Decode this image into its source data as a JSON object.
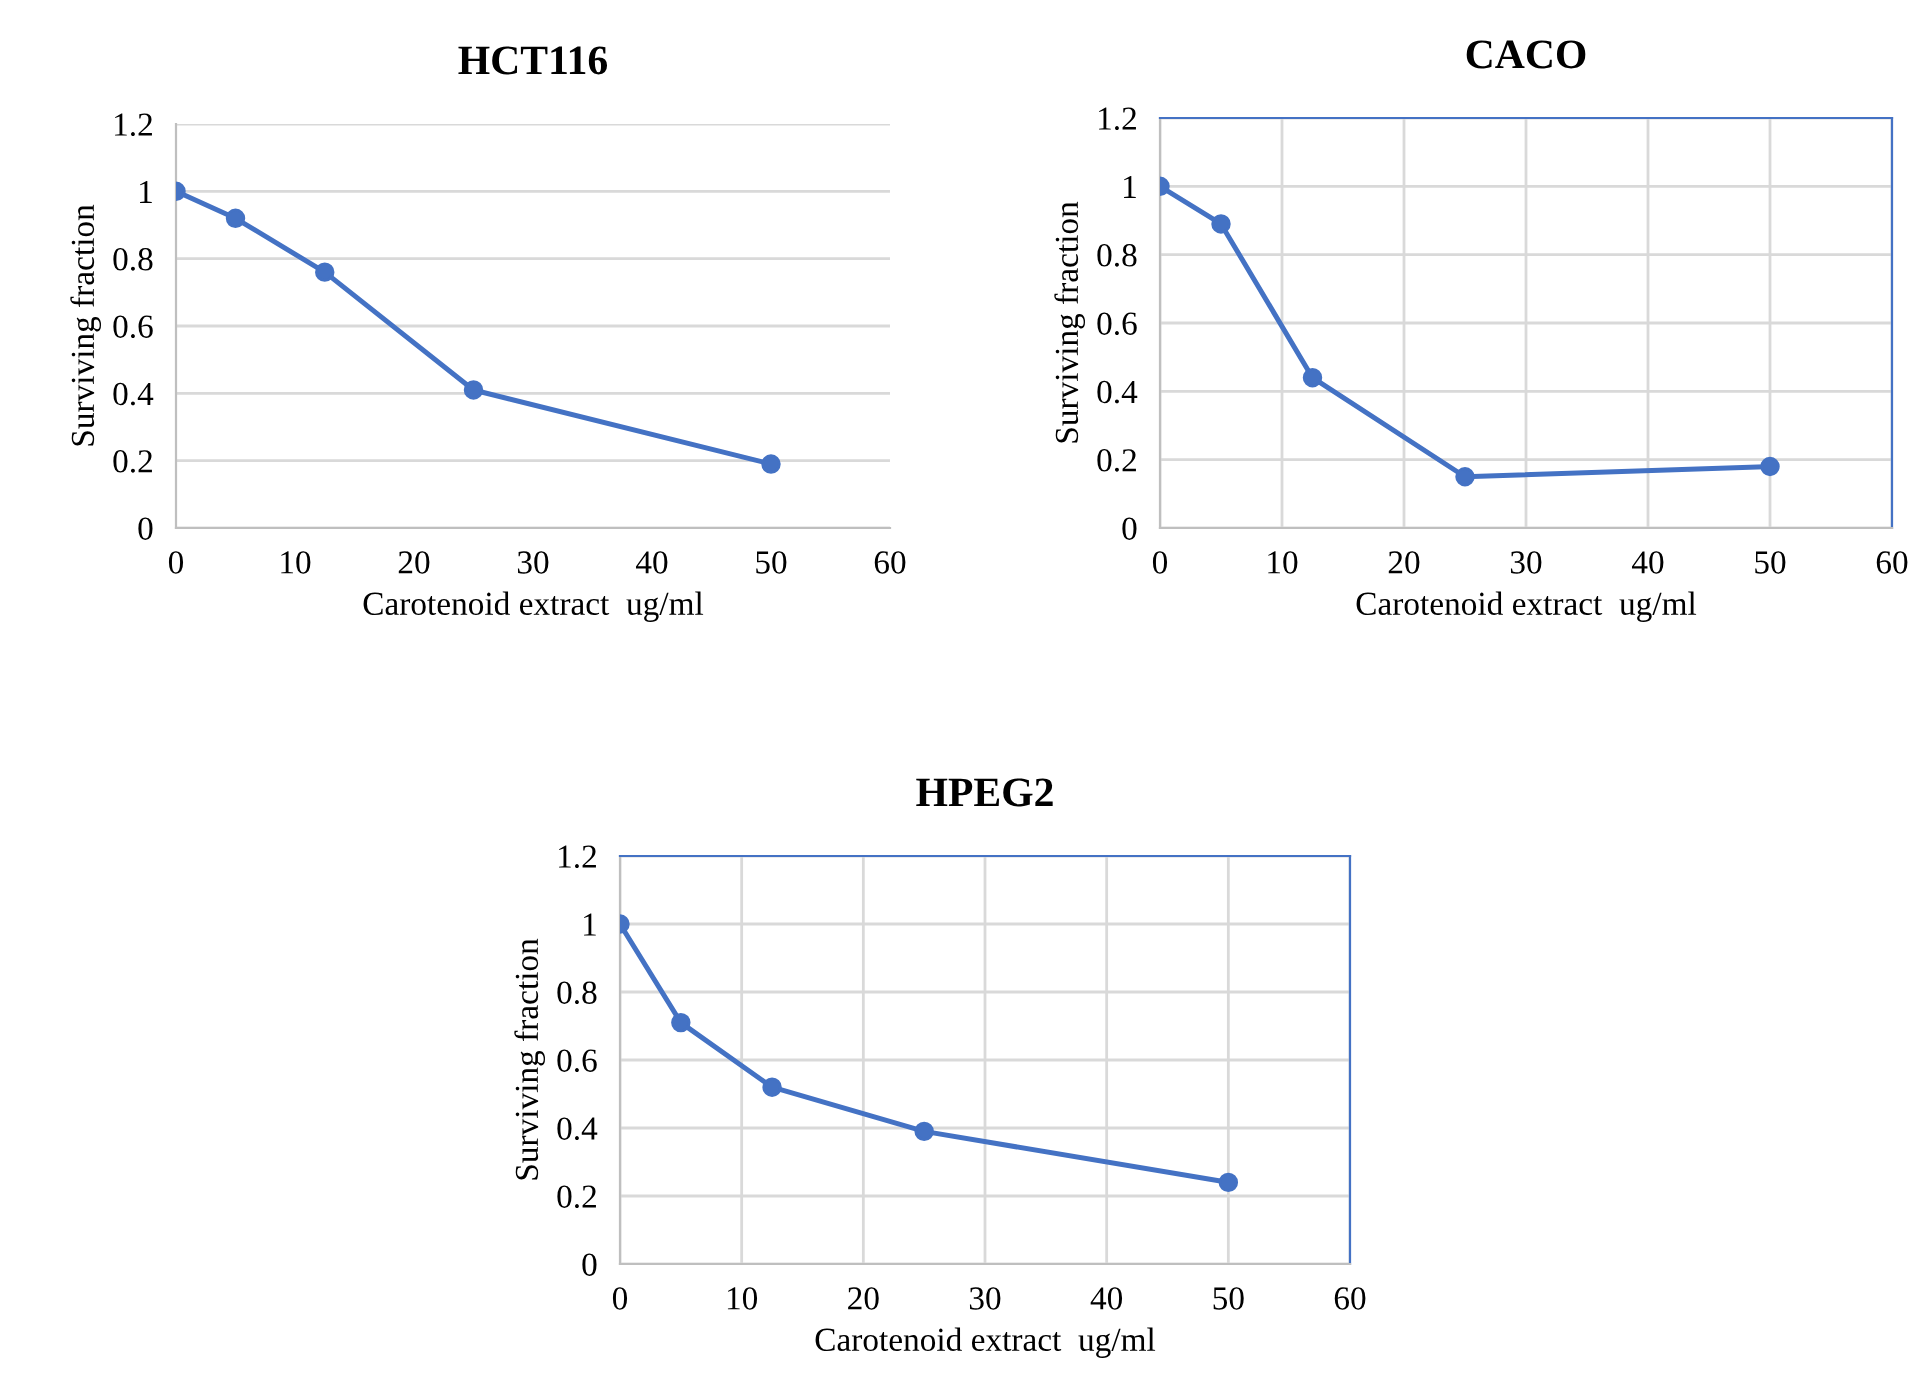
{
  "chart_data": [
    {
      "type": "line",
      "title": "HCT116",
      "xlabel": "Carotenoid extract  ug/ml",
      "ylabel": "Surviving fraction",
      "x": [
        0,
        5,
        12.5,
        25,
        50
      ],
      "series": [
        {
          "color": "#4472c4",
          "values": [
            1,
            0.92,
            0.76,
            0.41,
            0.19
          ]
        }
      ],
      "xlim": [
        0,
        60
      ],
      "xticks": [
        0,
        10,
        20,
        30,
        40,
        50,
        60
      ],
      "ylim": [
        0,
        1.2
      ],
      "yticks": [
        0,
        0.2,
        0.4,
        0.6,
        0.8,
        1,
        1.2
      ],
      "grid": "y",
      "marker": "circle",
      "line_style": "solid"
    },
    {
      "type": "line",
      "title": "CACO",
      "xlabel": "Carotenoid extract  ug/ml",
      "ylabel": "Surviving fraction",
      "x": [
        0,
        5,
        12.5,
        25,
        50
      ],
      "series": [
        {
          "color": "#4472c4",
          "values": [
            1,
            0.89,
            0.44,
            0.15,
            0.18
          ]
        }
      ],
      "xlim": [
        0,
        60
      ],
      "xticks": [
        0,
        10,
        20,
        30,
        40,
        50,
        60
      ],
      "ylim": [
        0,
        1.2
      ],
      "yticks": [
        0,
        0.2,
        0.4,
        0.6,
        0.8,
        1,
        1.2
      ],
      "grid": true,
      "marker": "circle",
      "line_style": "solid"
    },
    {
      "type": "line",
      "title": "HPEG2",
      "xlabel": "Carotenoid extract  ug/ml",
      "ylabel": "Surviving fraction",
      "x": [
        0,
        5,
        12.5,
        25,
        50
      ],
      "series": [
        {
          "color": "#4472c4",
          "values": [
            1,
            0.71,
            0.52,
            0.39,
            0.24
          ]
        }
      ],
      "xlim": [
        0,
        60
      ],
      "xticks": [
        0,
        10,
        20,
        30,
        40,
        50,
        60
      ],
      "ylim": [
        0,
        1.2
      ],
      "yticks": [
        0,
        0.2,
        0.4,
        0.6,
        0.8,
        1,
        1.2
      ],
      "grid": true,
      "marker": "circle",
      "line_style": "solid"
    }
  ]
}
